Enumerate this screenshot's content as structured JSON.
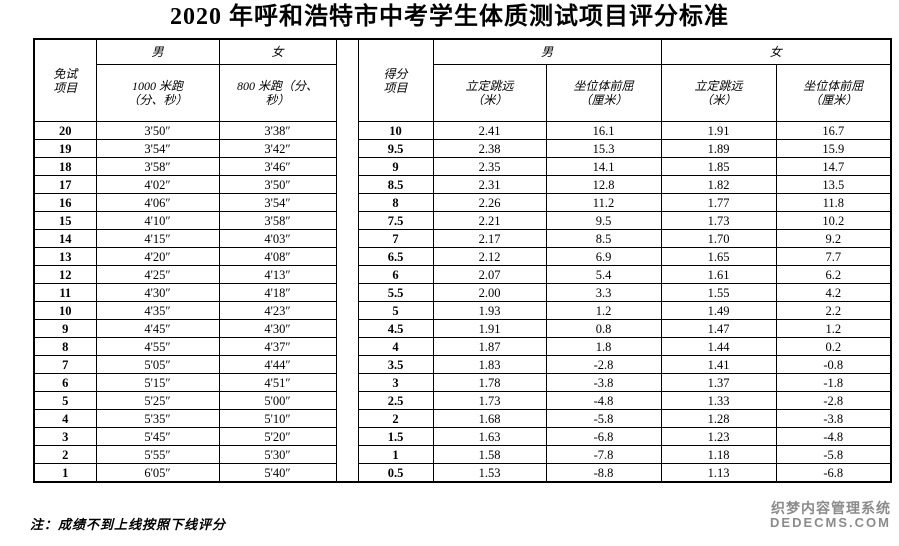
{
  "title": "2020 年呼和浩特市中考学生体质测试项目评分标准",
  "left_table": {
    "col_header": "免试\n项目",
    "male": "男",
    "female": "女",
    "male_sub": "1000 米跑\n（分、秒）",
    "female_sub": "800 米跑（分、\n秒）",
    "rows": [
      {
        "score": "20",
        "male": "3'50″",
        "female": "3'38″"
      },
      {
        "score": "19",
        "male": "3'54″",
        "female": "3'42″"
      },
      {
        "score": "18",
        "male": "3'58″",
        "female": "3'46″"
      },
      {
        "score": "17",
        "male": "4'02″",
        "female": "3'50″"
      },
      {
        "score": "16",
        "male": "4'06″",
        "female": "3'54″"
      },
      {
        "score": "15",
        "male": "4'10″",
        "female": "3'58″"
      },
      {
        "score": "14",
        "male": "4'15″",
        "female": "4'03″"
      },
      {
        "score": "13",
        "male": "4'20″",
        "female": "4'08″"
      },
      {
        "score": "12",
        "male": "4'25″",
        "female": "4'13″"
      },
      {
        "score": "11",
        "male": "4'30″",
        "female": "4'18″"
      },
      {
        "score": "10",
        "male": "4'35″",
        "female": "4'23″"
      },
      {
        "score": "9",
        "male": "4'45″",
        "female": "4'30″"
      },
      {
        "score": "8",
        "male": "4'55″",
        "female": "4'37″"
      },
      {
        "score": "7",
        "male": "5'05″",
        "female": "4'44″"
      },
      {
        "score": "6",
        "male": "5'15″",
        "female": "4'51″"
      },
      {
        "score": "5",
        "male": "5'25″",
        "female": "5'00″"
      },
      {
        "score": "4",
        "male": "5'35″",
        "female": "5'10″"
      },
      {
        "score": "3",
        "male": "5'45″",
        "female": "5'20″"
      },
      {
        "score": "2",
        "male": "5'55″",
        "female": "5'30″"
      },
      {
        "score": "1",
        "male": "6'05″",
        "female": "5'40″"
      }
    ]
  },
  "right_table": {
    "col_header": "得分\n项目",
    "male": "男",
    "female": "女",
    "subs": [
      "立定跳远\n（米）",
      "坐位体前屈\n（厘米）",
      "立定跳远\n（米）",
      "坐位体前屈\n（厘米）"
    ],
    "rows": [
      {
        "score": "10",
        "male_jump": "2.41",
        "male_sit": "16.1",
        "female_jump": "1.91",
        "female_sit": "16.7"
      },
      {
        "score": "9.5",
        "male_jump": "2.38",
        "male_sit": "15.3",
        "female_jump": "1.89",
        "female_sit": "15.9"
      },
      {
        "score": "9",
        "male_jump": "2.35",
        "male_sit": "14.1",
        "female_jump": "1.85",
        "female_sit": "14.7"
      },
      {
        "score": "8.5",
        "male_jump": "2.31",
        "male_sit": "12.8",
        "female_jump": "1.82",
        "female_sit": "13.5"
      },
      {
        "score": "8",
        "male_jump": "2.26",
        "male_sit": "11.2",
        "female_jump": "1.77",
        "female_sit": "11.8"
      },
      {
        "score": "7.5",
        "male_jump": "2.21",
        "male_sit": "9.5",
        "female_jump": "1.73",
        "female_sit": "10.2"
      },
      {
        "score": "7",
        "male_jump": "2.17",
        "male_sit": "8.5",
        "female_jump": "1.70",
        "female_sit": "9.2"
      },
      {
        "score": "6.5",
        "male_jump": "2.12",
        "male_sit": "6.9",
        "female_jump": "1.65",
        "female_sit": "7.7"
      },
      {
        "score": "6",
        "male_jump": "2.07",
        "male_sit": "5.4",
        "female_jump": "1.61",
        "female_sit": "6.2"
      },
      {
        "score": "5.5",
        "male_jump": "2.00",
        "male_sit": "3.3",
        "female_jump": "1.55",
        "female_sit": "4.2"
      },
      {
        "score": "5",
        "male_jump": "1.93",
        "male_sit": "1.2",
        "female_jump": "1.49",
        "female_sit": "2.2"
      },
      {
        "score": "4.5",
        "male_jump": "1.91",
        "male_sit": "0.8",
        "female_jump": "1.47",
        "female_sit": "1.2"
      },
      {
        "score": "4",
        "male_jump": "1.87",
        "male_sit": "1.8",
        "female_jump": "1.44",
        "female_sit": "0.2"
      },
      {
        "score": "3.5",
        "male_jump": "1.83",
        "male_sit": "-2.8",
        "female_jump": "1.41",
        "female_sit": "-0.8"
      },
      {
        "score": "3",
        "male_jump": "1.78",
        "male_sit": "-3.8",
        "female_jump": "1.37",
        "female_sit": "-1.8"
      },
      {
        "score": "2.5",
        "male_jump": "1.73",
        "male_sit": "-4.8",
        "female_jump": "1.33",
        "female_sit": "-2.8"
      },
      {
        "score": "2",
        "male_jump": "1.68",
        "male_sit": "-5.8",
        "female_jump": "1.28",
        "female_sit": "-3.8"
      },
      {
        "score": "1.5",
        "male_jump": "1.63",
        "male_sit": "-6.8",
        "female_jump": "1.23",
        "female_sit": "-4.8"
      },
      {
        "score": "1",
        "male_jump": "1.58",
        "male_sit": "-7.8",
        "female_jump": "1.18",
        "female_sit": "-5.8"
      },
      {
        "score": "0.5",
        "male_jump": "1.53",
        "male_sit": "-8.8",
        "female_jump": "1.13",
        "female_sit": "-6.8"
      }
    ]
  },
  "note": "注：成绩不到上线按照下线评分",
  "watermark": {
    "line1": "织梦内容管理系统",
    "line2": "DEDECMS.COM",
    "color": "#8b8b8b"
  }
}
